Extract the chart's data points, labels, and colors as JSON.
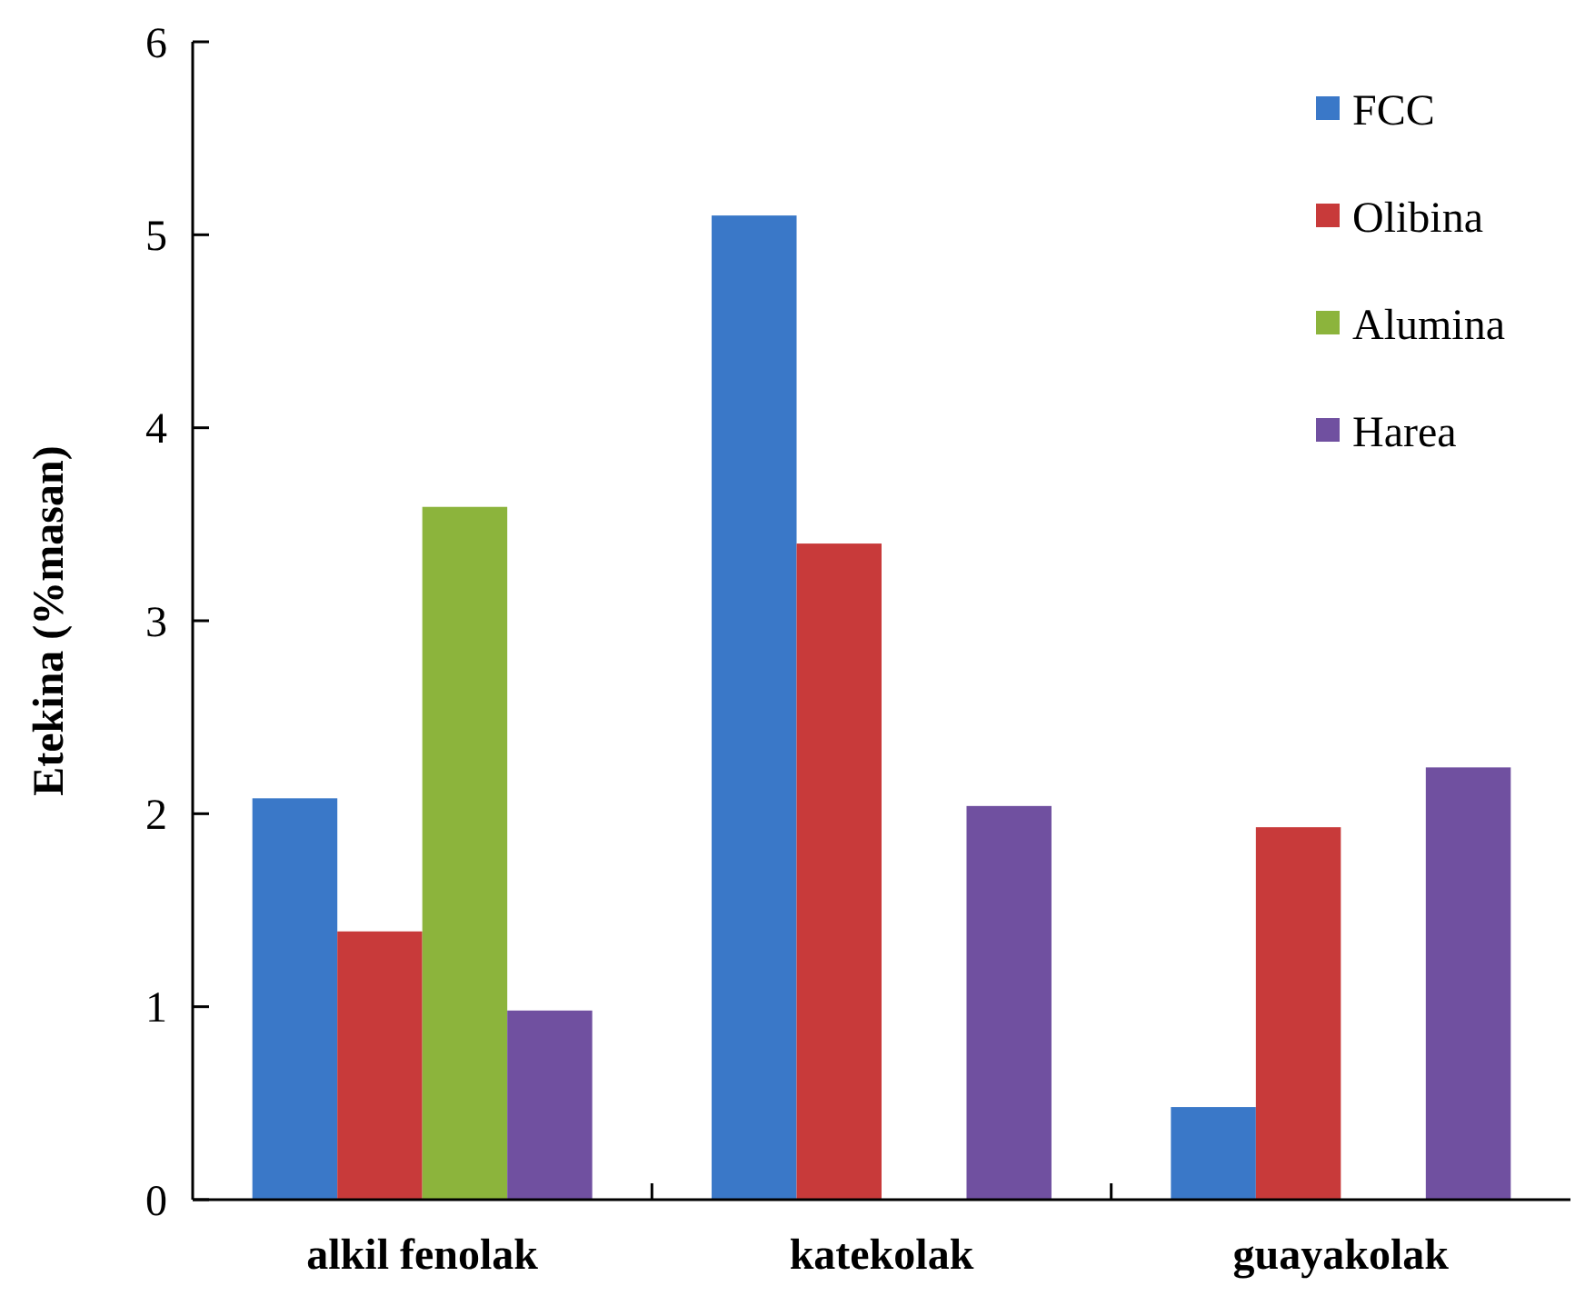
{
  "chart_data": {
    "type": "bar",
    "ylabel": "Etekina (%masan)",
    "categories": [
      "alkil fenolak",
      "katekolak",
      "guayakolak"
    ],
    "series": [
      {
        "name": "FCC",
        "color": "#3a78c8",
        "values": [
          2.08,
          5.1,
          0.48
        ]
      },
      {
        "name": "Olibina",
        "color": "#c83a3a",
        "values": [
          1.39,
          3.4,
          1.93
        ]
      },
      {
        "name": "Alumina",
        "color": "#8cb43c",
        "values": [
          3.59,
          null,
          null
        ]
      },
      {
        "name": "Harea",
        "color": "#7050a0",
        "values": [
          0.98,
          2.04,
          2.24
        ]
      }
    ],
    "ylim": [
      0,
      6
    ],
    "yticks": [
      0,
      1,
      2,
      3,
      4,
      5,
      6
    ],
    "grid": false,
    "legend": "top right"
  }
}
